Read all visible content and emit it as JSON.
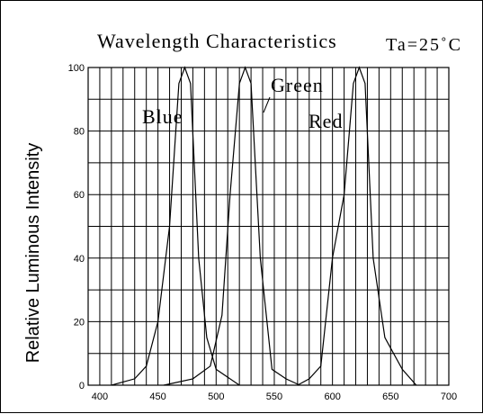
{
  "chart_data": {
    "type": "line",
    "title": "Wavelength Characteristics",
    "condition": "Ta=25˚C",
    "xlabel": "",
    "ylabel": "Relative Luminous Intensity",
    "xlim": [
      390,
      700
    ],
    "ylim": [
      0,
      100
    ],
    "x_ticks": [
      "400",
      "450",
      "500",
      "550",
      "600",
      "650",
      "700"
    ],
    "y_ticks": [
      "0",
      "20",
      "40",
      "60",
      "80",
      "100"
    ],
    "grid": true,
    "series": [
      {
        "name": "Blue",
        "x": [
          410,
          430,
          440,
          450,
          460,
          468,
          473,
          478,
          485,
          492,
          500,
          520
        ],
        "y": [
          0,
          2,
          6,
          20,
          50,
          95,
          100,
          95,
          40,
          15,
          5,
          0
        ]
      },
      {
        "name": "Green",
        "x": [
          455,
          480,
          495,
          505,
          512,
          520,
          525,
          530,
          538,
          548,
          560,
          572
        ],
        "y": [
          0,
          2,
          6,
          22,
          60,
          95,
          100,
          95,
          40,
          5,
          2,
          0
        ]
      },
      {
        "name": "Red",
        "x": [
          570,
          580,
          590,
          600,
          610,
          618,
          623,
          628,
          635,
          645,
          660,
          672
        ],
        "y": [
          0,
          2,
          6,
          40,
          60,
          95,
          100,
          95,
          40,
          15,
          5,
          0
        ]
      }
    ],
    "annotations": [
      "Blue",
      "Green",
      "Red"
    ]
  }
}
